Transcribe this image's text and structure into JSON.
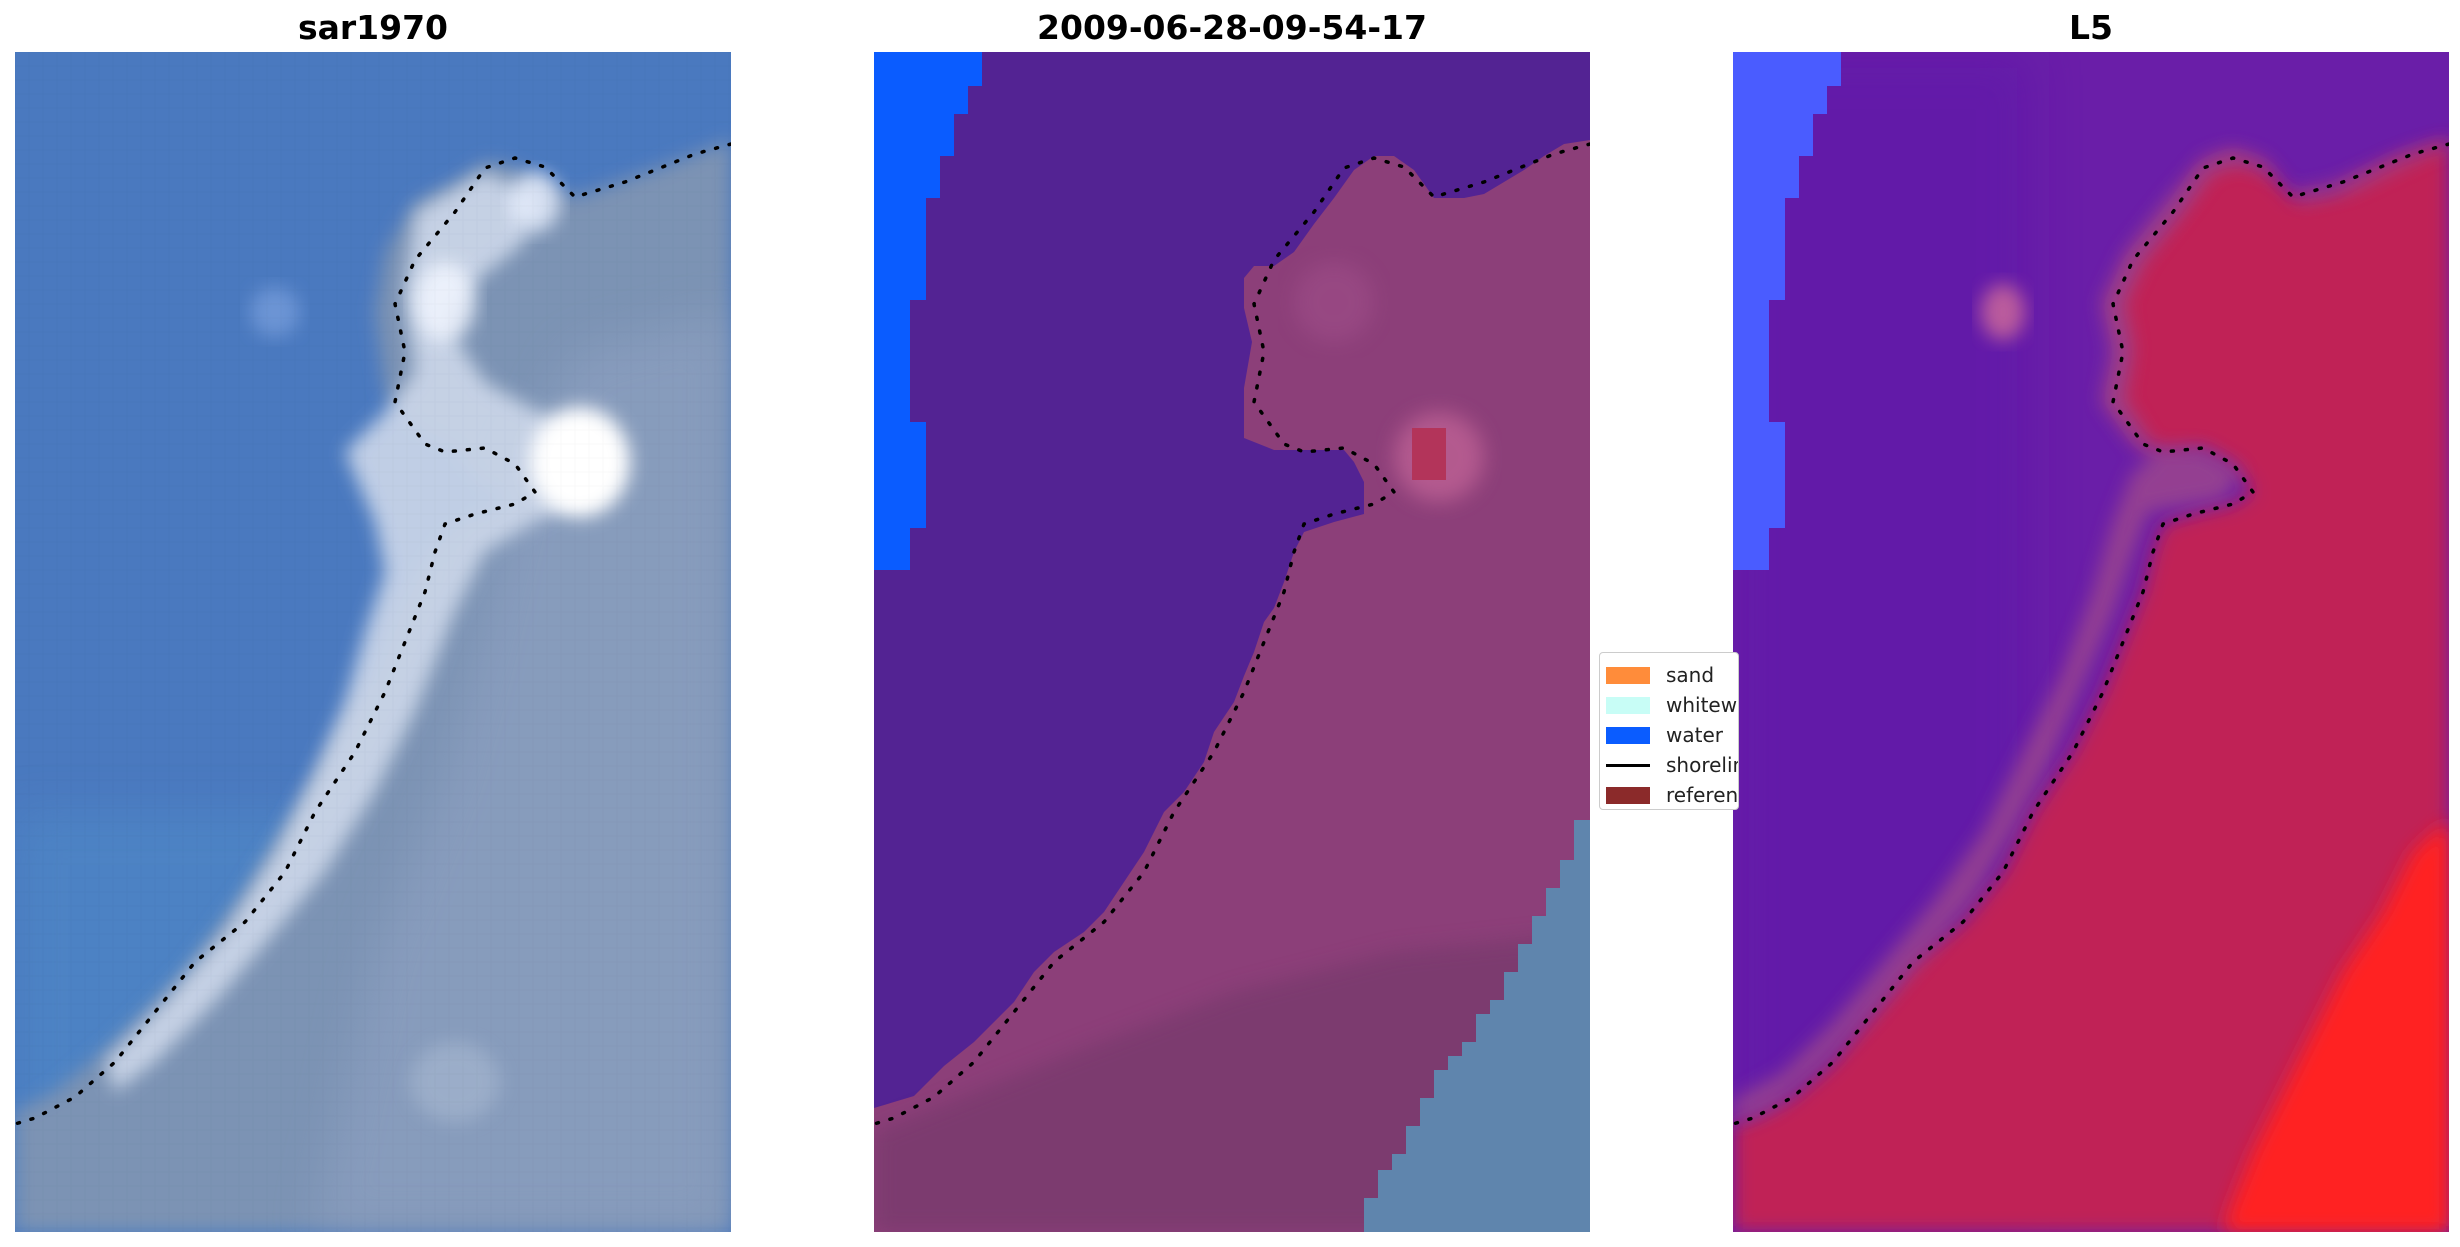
{
  "panels": [
    {
      "title": "sar1970",
      "type": "rgb-image"
    },
    {
      "title": "2009-06-28-09-54-17",
      "type": "classified-image"
    },
    {
      "title": "L5",
      "type": "index-image"
    }
  ],
  "legend": {
    "items": [
      {
        "label": "sand",
        "color": "#ff8c3a",
        "kind": "patch"
      },
      {
        "label": "whitewater",
        "color": "#c8fdf6",
        "kind": "patch"
      },
      {
        "label": "water",
        "color": "#0a5cff",
        "kind": "patch"
      },
      {
        "label": "shoreline",
        "color": "#000000",
        "kind": "line"
      },
      {
        "label": "reference",
        "color": "#8b2a2a",
        "kind": "patch"
      }
    ]
  },
  "colors": {
    "sea": "#4a79bf",
    "land_rgb": "#7b93b4",
    "whitewater": "#e9f0fb",
    "class_water": "#532393",
    "class_land": "#8c3f79",
    "class_ocean_edge": "#0a5cff",
    "class_other": "#5f85ad",
    "ndwi_water": "#6a1ea8",
    "ndwi_land": "#c02357",
    "ndwi_high": "#ff2020",
    "ndwi_edge": "#4a5cff",
    "shoreline": "#000000"
  }
}
